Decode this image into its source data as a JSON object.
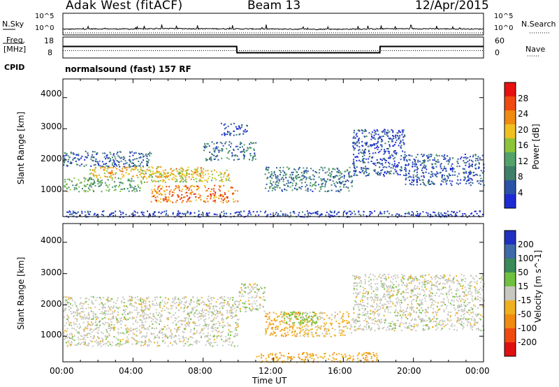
{
  "header": {
    "station": "Adak West (fitACF)",
    "beam": "Beam 13",
    "date": "12/Apr/2015"
  },
  "top_panels": {
    "nsky_label": "N.Sky",
    "nsearch_label": "N.Search",
    "noise_ticks": [
      "10^5",
      "10^0"
    ],
    "freq_label": "Freq.",
    "freq_unit": "[MHz]",
    "freq_ticks": [
      "18",
      "8"
    ],
    "nave_label": "Nave",
    "nave_ticks": [
      "60",
      "0"
    ],
    "cpid_label": "CPID",
    "cpid_text": "normalsound (fast) 157 RF"
  },
  "colors": {
    "power_scale": [
      "#1e2bd4",
      "#2a53a8",
      "#3f7f6a",
      "#53a26a",
      "#8cc43a",
      "#f0c020",
      "#f08a10",
      "#f04a10",
      "#e81010"
    ],
    "velocity_scale": [
      "#2030c0",
      "#3f6aa8",
      "#3a8a5a",
      "#70c040",
      "#c8c8c0",
      "#f0b020",
      "#f08a10",
      "#f04a10",
      "#e01010"
    ]
  },
  "chart_data": [
    {
      "type": "line",
      "title": "",
      "series": [
        {
          "name": "N.Sky",
          "x": [
            "00:00",
            "02:00",
            "04:00",
            "06:00",
            "08:00",
            "10:00",
            "12:00",
            "14:00",
            "16:00",
            "18:00",
            "20:00",
            "22:00",
            "24:00"
          ],
          "values": [
            10,
            12,
            11,
            14,
            13,
            12,
            11,
            10,
            10,
            12,
            13,
            12,
            11
          ]
        },
        {
          "name": "N.Search",
          "x": [
            "00:00",
            "04:00",
            "08:00",
            "12:00",
            "16:00",
            "20:00",
            "24:00"
          ],
          "values": [
            3,
            3,
            3,
            3,
            3,
            3,
            3
          ]
        }
      ],
      "ylim": [
        1,
        100000
      ],
      "ylog": true
    },
    {
      "type": "line",
      "series": [
        {
          "name": "Freq.",
          "x": [
            "00:00",
            "09:55",
            "09:56",
            "18:05",
            "18:06",
            "24:00"
          ],
          "values": [
            13.5,
            13.5,
            10.5,
            10.5,
            13.5,
            13.5
          ]
        },
        {
          "name": "Nave",
          "x": [
            "00:00",
            "24:00"
          ],
          "values": [
            21,
            21
          ]
        }
      ],
      "ylim": [
        8,
        18
      ],
      "ylim_right": [
        0,
        60
      ]
    },
    {
      "type": "heatmap",
      "ylabel": "Slant Range [km]",
      "xlabel": "Time UT",
      "x_ticks": [
        "00:00",
        "04:00",
        "08:00",
        "12:00",
        "16:00",
        "20:00",
        "00:00"
      ],
      "y_ticks": [
        1000,
        2000,
        3000,
        4000
      ],
      "ylim": [
        180,
        4600
      ],
      "colorbar": {
        "label": "Power [dB]",
        "ticks": [
          4,
          8,
          12,
          16,
          20,
          24,
          28
        ]
      },
      "regions": [
        {
          "t0": 0.0,
          "t1": 4.5,
          "r0": 1000,
          "r1": 1450,
          "value": 14
        },
        {
          "t0": 0.0,
          "t1": 5.0,
          "r0": 1800,
          "r1": 2300,
          "value": 8
        },
        {
          "t0": 1.5,
          "t1": 8.0,
          "r0": 1450,
          "r1": 1800,
          "value": 22
        },
        {
          "t0": 5.0,
          "t1": 10.0,
          "r0": 650,
          "r1": 1200,
          "value": 26
        },
        {
          "t0": 4.5,
          "t1": 9.5,
          "r0": 1300,
          "r1": 1700,
          "value": 20
        },
        {
          "t0": 8.0,
          "t1": 11.0,
          "r0": 2000,
          "r1": 2600,
          "value": 10
        },
        {
          "t0": 9.0,
          "t1": 10.5,
          "r0": 2800,
          "r1": 3200,
          "value": 6
        },
        {
          "t0": 11.5,
          "t1": 16.5,
          "r0": 1000,
          "r1": 1800,
          "value": 10
        },
        {
          "t0": 16.5,
          "t1": 19.5,
          "r0": 1500,
          "r1": 3000,
          "value": 6
        },
        {
          "t0": 19.5,
          "t1": 24.0,
          "r0": 1200,
          "r1": 2200,
          "value": 7
        },
        {
          "t0": 0.0,
          "t1": 24.0,
          "r0": 180,
          "r1": 380,
          "value": 5
        }
      ]
    },
    {
      "type": "heatmap",
      "ylabel": "Slant Range [km]",
      "xlabel": "Time UT",
      "x_ticks": [
        "00:00",
        "04:00",
        "08:00",
        "12:00",
        "16:00",
        "20:00",
        "00:00"
      ],
      "y_ticks": [
        1000,
        2000,
        3000,
        4000
      ],
      "ylim": [
        180,
        4600
      ],
      "colorbar": {
        "label": "Velocity [m s^-1]",
        "ticks": [
          200,
          100,
          50,
          15,
          -15,
          -50,
          -100,
          -200
        ]
      },
      "regions": [
        {
          "t0": 0.0,
          "t1": 10.0,
          "r0": 700,
          "r1": 2300,
          "value": 0
        },
        {
          "t0": 10.0,
          "t1": 11.5,
          "r0": 1800,
          "r1": 2700,
          "value": 0
        },
        {
          "t0": 11.5,
          "t1": 13.5,
          "r0": 1000,
          "r1": 1800,
          "value": -40
        },
        {
          "t0": 13.5,
          "t1": 16.5,
          "r0": 1000,
          "r1": 1800,
          "value": -20
        },
        {
          "t0": 12.5,
          "t1": 14.5,
          "r0": 1400,
          "r1": 1800,
          "value": 30
        },
        {
          "t0": 16.5,
          "t1": 24.0,
          "r0": 1200,
          "r1": 3000,
          "value": 0
        },
        {
          "t0": 11.0,
          "t1": 18.0,
          "r0": 180,
          "r1": 500,
          "value": -40
        }
      ]
    }
  ]
}
